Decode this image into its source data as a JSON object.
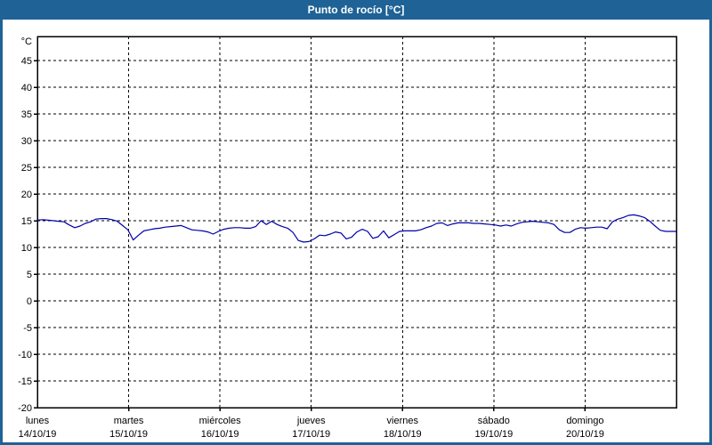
{
  "window": {
    "title": "Punto de rocío [°C]"
  },
  "colors": {
    "title_bar_bg": "#1e6296",
    "title_text": "#ffffff",
    "frame": "#1e6296",
    "plot_bg": "#ffffff",
    "axis": "#000000",
    "grid": "#000000",
    "label_text": "#000000",
    "series_line": "#0000a8"
  },
  "chart_data": {
    "type": "line",
    "title": "Punto de rocío [°C]",
    "y_unit": "°C",
    "ylim": [
      -20,
      50
    ],
    "ytick_interval": 5,
    "yticks": [
      45,
      40,
      35,
      30,
      25,
      20,
      15,
      10,
      5,
      0,
      -5,
      -10,
      -15,
      -20
    ],
    "grid": "dashed horizontal every 5°C, dashed vertical every day",
    "legend": "none",
    "x_days": [
      {
        "name": "lunes",
        "date": "14/10/19"
      },
      {
        "name": "martes",
        "date": "15/10/19"
      },
      {
        "name": "miércoles",
        "date": "16/10/19"
      },
      {
        "name": "jueves",
        "date": "17/10/19"
      },
      {
        "name": "viernes",
        "date": "18/10/19"
      },
      {
        "name": "sábado",
        "date": "19/10/19"
      },
      {
        "name": "domingo",
        "date": "20/10/19"
      }
    ],
    "series": [
      {
        "name": "Punto de rocío",
        "color": "#0000a8",
        "x_span_days": [
          0,
          7
        ],
        "values": [
          15.1,
          15.2,
          15.1,
          15.0,
          14.9,
          14.8,
          14.2,
          13.7,
          14.0,
          14.5,
          14.8,
          15.3,
          15.4,
          15.4,
          15.2,
          14.9,
          14.1,
          13.3,
          11.4,
          12.3,
          13.1,
          13.3,
          13.5,
          13.6,
          13.8,
          13.9,
          14.0,
          14.1,
          13.7,
          13.3,
          13.2,
          13.1,
          12.9,
          12.5,
          13.0,
          13.4,
          13.6,
          13.7,
          13.7,
          13.6,
          13.6,
          13.9,
          15.0,
          14.3,
          14.9,
          14.3,
          13.9,
          13.6,
          12.8,
          11.3,
          11.0,
          11.1,
          11.6,
          12.3,
          12.2,
          12.5,
          12.9,
          12.7,
          11.6,
          11.9,
          12.9,
          13.4,
          13.0,
          11.7,
          12.0,
          13.1,
          11.8,
          12.4,
          13.0,
          13.1,
          13.1,
          13.1,
          13.3,
          13.7,
          14.0,
          14.5,
          14.6,
          14.1,
          14.4,
          14.6,
          14.6,
          14.6,
          14.5,
          14.5,
          14.4,
          14.3,
          14.2,
          14.0,
          14.2,
          14.0,
          14.4,
          14.7,
          14.8,
          14.9,
          14.8,
          14.7,
          14.6,
          14.3,
          13.3,
          12.8,
          12.8,
          13.4,
          13.7,
          13.6,
          13.7,
          13.8,
          13.8,
          13.5,
          14.8,
          15.3,
          15.6,
          16.0,
          16.1,
          15.9,
          15.6,
          14.9,
          14.0,
          13.2,
          13.0,
          13.0,
          13.0
        ]
      }
    ]
  }
}
